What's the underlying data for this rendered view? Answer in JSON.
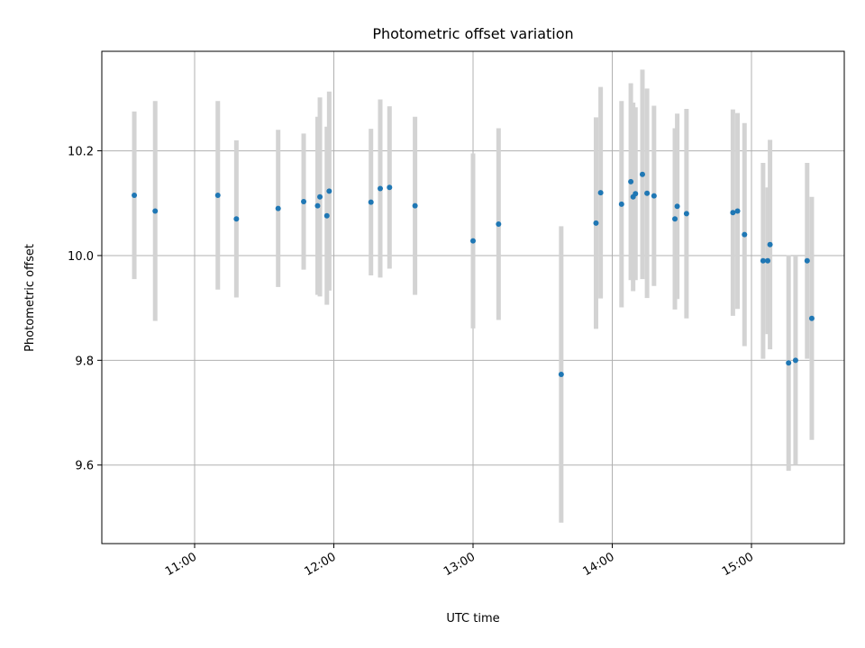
{
  "chart_data": {
    "type": "scatter",
    "title": "Photometric offset variation",
    "xlabel": "UTC time",
    "ylabel": "Photometric offset",
    "x_axis_type": "time",
    "xlim": [
      "10:20",
      "15:40"
    ],
    "ylim": [
      9.45,
      10.39
    ],
    "x_ticks": [
      "11:00",
      "12:00",
      "13:00",
      "14:00",
      "15:00"
    ],
    "y_ticks": [
      9.6,
      9.8,
      10.0,
      10.2
    ],
    "x_tick_labels_rotated": true,
    "grid": true,
    "legend": "none",
    "colors": {
      "marker": "#1f77b4",
      "errorbar": "#d3d3d3",
      "grid": "#b0b0b0"
    },
    "series": [
      {
        "points": [
          {
            "t": "10:34",
            "y": 10.115,
            "err": 0.16
          },
          {
            "t": "10:43",
            "y": 10.085,
            "err": 0.21
          },
          {
            "t": "11:10",
            "y": 10.115,
            "err": 0.18
          },
          {
            "t": "11:18",
            "y": 10.07,
            "err": 0.15
          },
          {
            "t": "11:36",
            "y": 10.09,
            "err": 0.15
          },
          {
            "t": "11:47",
            "y": 10.103,
            "err": 0.13
          },
          {
            "t": "11:53",
            "y": 10.095,
            "err": 0.17
          },
          {
            "t": "11:54",
            "y": 10.112,
            "err": 0.19
          },
          {
            "t": "11:57",
            "y": 10.076,
            "err": 0.17
          },
          {
            "t": "11:58",
            "y": 10.123,
            "err": 0.19
          },
          {
            "t": "12:16",
            "y": 10.102,
            "err": 0.14
          },
          {
            "t": "12:20",
            "y": 10.128,
            "err": 0.17
          },
          {
            "t": "12:24",
            "y": 10.13,
            "err": 0.155
          },
          {
            "t": "12:35",
            "y": 10.095,
            "err": 0.17
          },
          {
            "t": "13:00",
            "y": 10.028,
            "err": 0.167
          },
          {
            "t": "13:11",
            "y": 10.06,
            "err": 0.183
          },
          {
            "t": "13:38",
            "y": 9.773,
            "err": 0.283
          },
          {
            "t": "13:53",
            "y": 10.062,
            "err": 0.202
          },
          {
            "t": "13:55",
            "y": 10.12,
            "err": 0.202
          },
          {
            "t": "14:04",
            "y": 10.098,
            "err": 0.197
          },
          {
            "t": "14:08",
            "y": 10.141,
            "err": 0.188
          },
          {
            "t": "14:09",
            "y": 10.112,
            "err": 0.18
          },
          {
            "t": "14:10",
            "y": 10.118,
            "err": 0.165
          },
          {
            "t": "14:13",
            "y": 10.155,
            "err": 0.2
          },
          {
            "t": "14:15",
            "y": 10.119,
            "err": 0.2
          },
          {
            "t": "14:18",
            "y": 10.114,
            "err": 0.172
          },
          {
            "t": "14:27",
            "y": 10.07,
            "err": 0.173
          },
          {
            "t": "14:28",
            "y": 10.094,
            "err": 0.177
          },
          {
            "t": "14:32",
            "y": 10.08,
            "err": 0.2
          },
          {
            "t": "14:52",
            "y": 10.082,
            "err": 0.197
          },
          {
            "t": "14:54",
            "y": 10.085,
            "err": 0.187
          },
          {
            "t": "14:57",
            "y": 10.04,
            "err": 0.213
          },
          {
            "t": "15:05",
            "y": 9.99,
            "err": 0.187
          },
          {
            "t": "15:07",
            "y": 9.99,
            "err": 0.14
          },
          {
            "t": "15:08",
            "y": 10.021,
            "err": 0.2
          },
          {
            "t": "15:16",
            "y": 9.795,
            "err": 0.206
          },
          {
            "t": "15:19",
            "y": 9.8,
            "err": 0.2
          },
          {
            "t": "15:24",
            "y": 9.99,
            "err": 0.187
          },
          {
            "t": "15:26",
            "y": 9.88,
            "err": 0.232
          }
        ]
      }
    ]
  }
}
